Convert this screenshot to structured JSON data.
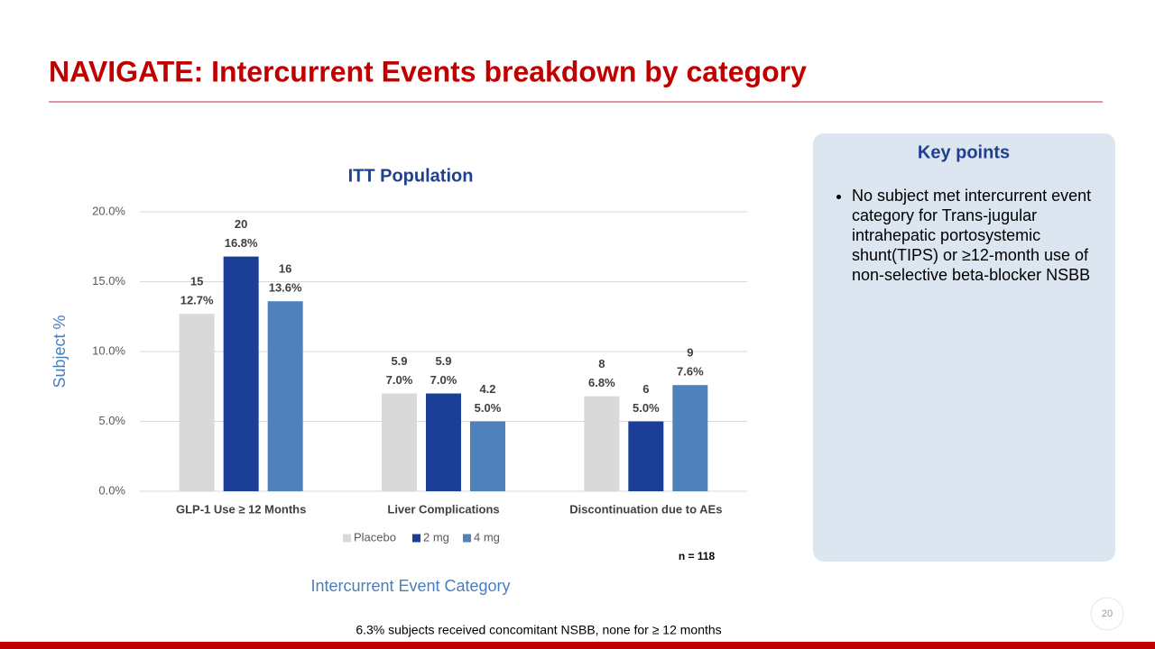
{
  "title": "NAVIGATE: Intercurrent Events breakdown by category",
  "key_points": {
    "heading": "Key points",
    "items": [
      "No subject met intercurrent event category for Trans-jugular intrahepatic portosystemic shunt(TIPS) or  ≥12-month use of non-selective beta-blocker NSBB"
    ]
  },
  "n_note": "n = 118",
  "footnote": "6.3% subjects received concomitant NSBB, none for ≥ 12 months",
  "page_number": "20",
  "chart_data": {
    "type": "bar",
    "title": "ITT Population",
    "y_label": "Subject %",
    "x_label": "Intercurrent Event Category",
    "categories": [
      "GLP-1 Use ≥ 12 Months",
      "Liver Complications",
      "Discontinuation due to AEs"
    ],
    "series": [
      {
        "name": "Placebo",
        "color": "#d9d9d9",
        "values": [
          12.7,
          7.0,
          6.8
        ],
        "value_labels": [
          "12.7%",
          "7.0%",
          "6.8%"
        ],
        "counts": [
          15,
          5.9,
          8
        ]
      },
      {
        "name": "2 mg",
        "color": "#1b3f97",
        "values": [
          16.8,
          7.0,
          5.0
        ],
        "value_labels": [
          "16.8%",
          "7.0%",
          "5.0%"
        ],
        "counts": [
          20,
          5.9,
          6
        ]
      },
      {
        "name": "4 mg",
        "color": "#4f81bd",
        "values": [
          13.6,
          5.0,
          7.6
        ],
        "value_labels": [
          "13.6%",
          "5.0%",
          "7.6%"
        ],
        "counts": [
          16,
          4.2,
          9
        ]
      }
    ],
    "ylim": [
      0,
      20
    ],
    "yticks": [
      {
        "value": 0,
        "label": "0.0%"
      },
      {
        "value": 5,
        "label": "5.0%"
      },
      {
        "value": 10,
        "label": "10.0%"
      },
      {
        "value": 15,
        "label": "15.0%"
      },
      {
        "value": 20,
        "label": "20.0%"
      }
    ],
    "grid": true,
    "legend": "bottom"
  }
}
